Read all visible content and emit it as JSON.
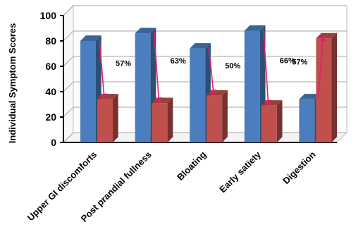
{
  "chart_data": {
    "type": "bar",
    "title": "",
    "ylabel": "Individual Symptom Scores",
    "xlabel": "",
    "ylim": [
      0,
      100
    ],
    "yticks": [
      0,
      20,
      40,
      60,
      80,
      100
    ],
    "grid": true,
    "categories": [
      "Upper GI discomforts",
      "Post prandial fullness",
      "Bloating",
      "Early satiety",
      "Digestion"
    ],
    "series": [
      {
        "values": [
          80,
          86,
          74,
          88,
          34
        ],
        "color": "#4a7ebf"
      },
      {
        "values": [
          34,
          31,
          37,
          29,
          82
        ],
        "color": "#c0504d"
      }
    ],
    "annotations": [
      {
        "category": "Upper GI discomforts",
        "label": "57%"
      },
      {
        "category": "Post prandial fullness",
        "label": "63%"
      },
      {
        "category": "Bloating",
        "label": "50%"
      },
      {
        "category": "Early satiety",
        "label": "66%"
      },
      {
        "category": "Digestion",
        "label": "57%"
      }
    ],
    "arrow_color": "#e0206a"
  }
}
